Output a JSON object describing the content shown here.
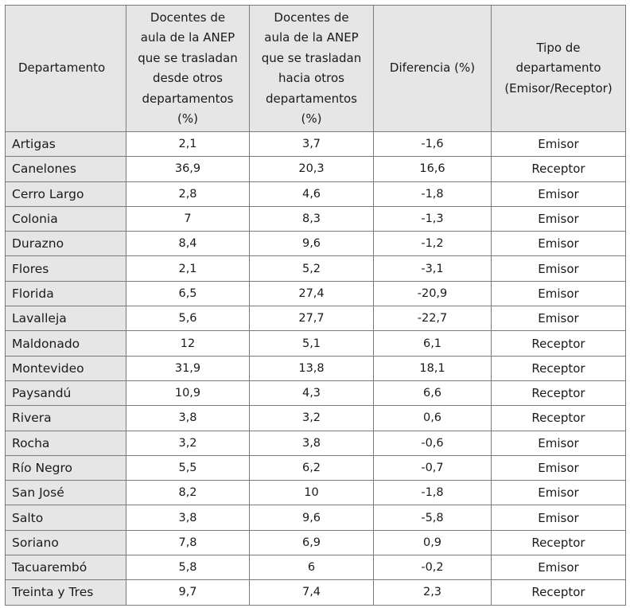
{
  "table": {
    "headers": {
      "departamento": "Departamento",
      "desde": "Docentes de\naula de la ANEP\nque se trasladan\ndesde otros\ndepartamentos\n(%)",
      "hacia": "Docentes de\naula de la ANEP\nque se trasladan\nhacia otros\ndepartamentos\n(%)",
      "diferencia": "Diferencia (%)",
      "tipo": "Tipo de\ndepartamento\n(Emisor/Receptor)"
    },
    "rows": [
      {
        "departamento": "Artigas",
        "desde": "2,1",
        "hacia": "3,7",
        "diferencia": "-1,6",
        "tipo": "Emisor"
      },
      {
        "departamento": "Canelones",
        "desde": "36,9",
        "hacia": "20,3",
        "diferencia": "16,6",
        "tipo": "Receptor"
      },
      {
        "departamento": "Cerro Largo",
        "desde": "2,8",
        "hacia": "4,6",
        "diferencia": "-1,8",
        "tipo": "Emisor"
      },
      {
        "departamento": "Colonia",
        "desde": "7",
        "hacia": "8,3",
        "diferencia": "-1,3",
        "tipo": "Emisor"
      },
      {
        "departamento": "Durazno",
        "desde": "8,4",
        "hacia": "9,6",
        "diferencia": "-1,2",
        "tipo": "Emisor"
      },
      {
        "departamento": "Flores",
        "desde": "2,1",
        "hacia": "5,2",
        "diferencia": "-3,1",
        "tipo": "Emisor"
      },
      {
        "departamento": "Florida",
        "desde": "6,5",
        "hacia": "27,4",
        "diferencia": "-20,9",
        "tipo": "Emisor"
      },
      {
        "departamento": "Lavalleja",
        "desde": "5,6",
        "hacia": "27,7",
        "diferencia": "-22,7",
        "tipo": "Emisor"
      },
      {
        "departamento": "Maldonado",
        "desde": "12",
        "hacia": "5,1",
        "diferencia": "6,1",
        "tipo": "Receptor"
      },
      {
        "departamento": "Montevideo",
        "desde": "31,9",
        "hacia": "13,8",
        "diferencia": "18,1",
        "tipo": "Receptor"
      },
      {
        "departamento": "Paysandú",
        "desde": "10,9",
        "hacia": "4,3",
        "diferencia": "6,6",
        "tipo": "Receptor"
      },
      {
        "departamento": "Rivera",
        "desde": "3,8",
        "hacia": "3,2",
        "diferencia": "0,6",
        "tipo": "Receptor"
      },
      {
        "departamento": "Rocha",
        "desde": "3,2",
        "hacia": "3,8",
        "diferencia": "-0,6",
        "tipo": "Emisor"
      },
      {
        "departamento": "Río Negro",
        "desde": "5,5",
        "hacia": "6,2",
        "diferencia": "-0,7",
        "tipo": "Emisor"
      },
      {
        "departamento": "San José",
        "desde": "8,2",
        "hacia": "10",
        "diferencia": "-1,8",
        "tipo": "Emisor"
      },
      {
        "departamento": "Salto",
        "desde": "3,8",
        "hacia": "9,6",
        "diferencia": "-5,8",
        "tipo": "Emisor"
      },
      {
        "departamento": "Soriano",
        "desde": "7,8",
        "hacia": "6,9",
        "diferencia": "0,9",
        "tipo": "Receptor"
      },
      {
        "departamento": "Tacuarembó",
        "desde": "5,8",
        "hacia": "6",
        "diferencia": "-0,2",
        "tipo": "Emisor"
      },
      {
        "departamento": "Treinta y Tres",
        "desde": "9,7",
        "hacia": "7,4",
        "diferencia": "2,3",
        "tipo": "Receptor"
      }
    ]
  }
}
